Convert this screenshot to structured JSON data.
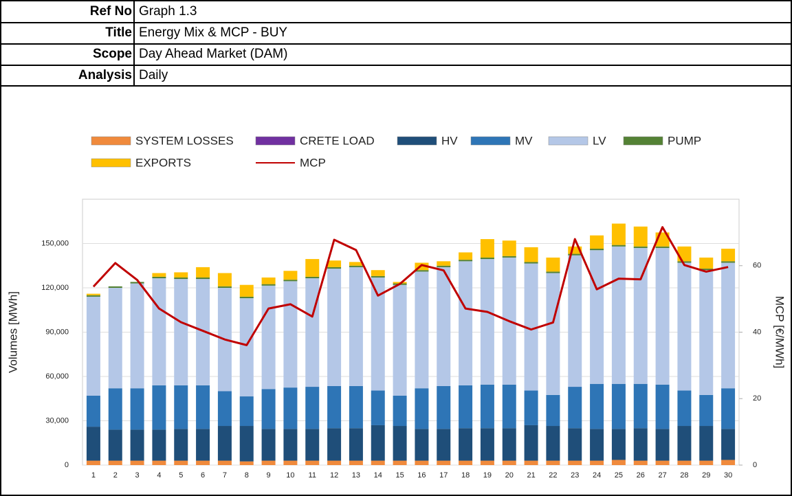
{
  "header": {
    "rows": [
      {
        "label": "Ref No",
        "value": "Graph 1.3"
      },
      {
        "label": "Title",
        "value": "Energy Mix & MCP - BUY"
      },
      {
        "label": "Scope",
        "value": "Day Ahead Market (DAM)"
      },
      {
        "label": "Analysis",
        "value": "Daily"
      }
    ]
  },
  "chart_data": {
    "type": "bar",
    "stacked": true,
    "y_label": "Volumes [MWh]",
    "y2_label": "MCP [€/MWh]",
    "categories": [
      "1",
      "2",
      "3",
      "4",
      "5",
      "6",
      "7",
      "8",
      "9",
      "10",
      "11",
      "12",
      "13",
      "14",
      "15",
      "16",
      "17",
      "18",
      "19",
      "20",
      "21",
      "22",
      "23",
      "24",
      "25",
      "26",
      "27",
      "28",
      "29",
      "30"
    ],
    "ylim": [
      0,
      180000
    ],
    "yticks": [
      0,
      {
        "value": 30000,
        "label": "30,000"
      },
      {
        "value": 60000,
        "label": "60,000"
      },
      {
        "value": 90000,
        "label": "90,000"
      },
      {
        "value": 120000,
        "label": "120,000"
      },
      {
        "value": 150000,
        "label": "150,000"
      }
    ],
    "y2lim": [
      0,
      80
    ],
    "y2ticks": [
      0,
      20,
      40,
      60
    ],
    "grid": true,
    "series": [
      {
        "name": "SYSTEM LOSSES",
        "color": "#f08a3c",
        "values": [
          3000,
          3000,
          3000,
          3000,
          3000,
          3000,
          3000,
          2500,
          3000,
          3000,
          3000,
          3000,
          3000,
          3000,
          3000,
          3000,
          3000,
          3000,
          3000,
          3000,
          3000,
          3000,
          3000,
          3000,
          3500,
          3000,
          3000,
          3000,
          3000,
          3500
        ]
      },
      {
        "name": "CRETE LOAD",
        "color": "#7030a0",
        "values": [
          0,
          0,
          0,
          0,
          0,
          0,
          0,
          0,
          0,
          0,
          0,
          0,
          0,
          0,
          0,
          0,
          0,
          0,
          0,
          0,
          0,
          0,
          0,
          0,
          0,
          0,
          0,
          0,
          0,
          0
        ]
      },
      {
        "name": "HV",
        "color": "#1f4e79",
        "values": [
          23000,
          21000,
          21000,
          21000,
          21500,
          21500,
          23500,
          24000,
          21500,
          21500,
          21500,
          22000,
          22000,
          24000,
          23500,
          21500,
          21500,
          22000,
          22000,
          22000,
          24000,
          23500,
          22000,
          21500,
          21000,
          22000,
          21500,
          23500,
          23500,
          21000
        ]
      },
      {
        "name": "MV",
        "color": "#2e75b6",
        "values": [
          21000,
          28000,
          28000,
          30000,
          29500,
          29500,
          23500,
          20000,
          27000,
          28000,
          28500,
          28500,
          28500,
          23500,
          20500,
          27500,
          29000,
          29000,
          29500,
          29500,
          23500,
          21000,
          28000,
          30500,
          30500,
          30000,
          30000,
          24000,
          21000,
          27500
        ]
      },
      {
        "name": "LV",
        "color": "#b4c7e7",
        "values": [
          67000,
          68000,
          71000,
          72500,
          72000,
          72000,
          70000,
          66500,
          70000,
          72000,
          73500,
          79500,
          80500,
          76500,
          75000,
          79000,
          80500,
          84000,
          85000,
          86000,
          86000,
          82500,
          89000,
          90500,
          93000,
          92000,
          92500,
          86500,
          84500,
          85000
        ]
      },
      {
        "name": "PUMP",
        "color": "#548235",
        "values": [
          1000,
          1000,
          1000,
          1000,
          1000,
          1000,
          1000,
          1000,
          1000,
          1000,
          1000,
          1000,
          1000,
          1000,
          1000,
          1000,
          1000,
          1000,
          1000,
          1000,
          1000,
          1000,
          1000,
          1000,
          1000,
          1000,
          1000,
          1000,
          1000,
          1000
        ]
      },
      {
        "name": "EXPORTS",
        "color": "#ffc000",
        "values": [
          1000,
          0,
          0,
          2500,
          3500,
          7000,
          9000,
          8000,
          4500,
          6000,
          12000,
          4500,
          2500,
          4000,
          1000,
          5000,
          3000,
          5000,
          12500,
          10500,
          10000,
          9500,
          5000,
          9000,
          14500,
          13500,
          9500,
          10000,
          7500,
          8500
        ]
      },
      {
        "name": "MCP",
        "color": "#c00000",
        "type": "line",
        "axis": "y2",
        "values": [
          53.7,
          60.8,
          55.7,
          47.1,
          43,
          40.4,
          37.8,
          36.1,
          47.1,
          48.4,
          44.7,
          67.8,
          64.7,
          51,
          54.5,
          60.2,
          58.6,
          47.1,
          46.1,
          43.3,
          40.8,
          42.9,
          68,
          52.9,
          56.1,
          55.9,
          71.6,
          60.2,
          58.2,
          59.6
        ]
      }
    ]
  }
}
